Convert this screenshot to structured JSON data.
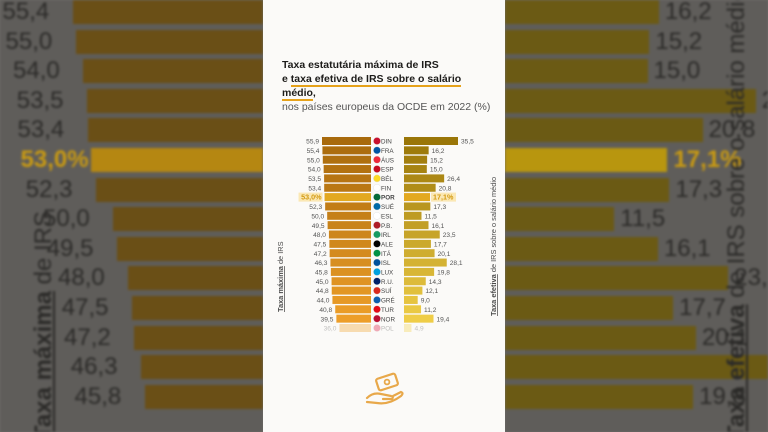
{
  "title": {
    "line1": "Taxa estatutária máxima de IRS",
    "line2_prefix": "e ",
    "line2_emph": "taxa efetiva de IRS sobre o salário médio",
    "line2_suffix": ",",
    "line3": "nos países europeus da OCDE em 2022 (%)"
  },
  "axis": {
    "left_bold": "Taxa máxima",
    "left_rest": " de IRS",
    "right_bold": "Taxa efetiva",
    "right_rest": " de IRS sobre o salário médio"
  },
  "colors": {
    "left_dark": "#a86a0d",
    "left_light": "#f1a12a",
    "right_dark": "#9a7608",
    "right_light": "#f3d24a",
    "highlight": "#e3a920",
    "logo": "#e8a84a"
  },
  "chart_data": {
    "type": "bar",
    "categories": [
      "DIN",
      "FRA",
      "ÁUS",
      "ESP",
      "BÉL",
      "FIN",
      "POR",
      "SUÉ",
      "ESL",
      "P.B.",
      "IRL",
      "ALE",
      "ITÁ",
      "ISL",
      "LUX",
      "R.U.",
      "SUÍ",
      "GRÉ",
      "TUR",
      "NOR",
      "POL"
    ],
    "flags": [
      "dk",
      "fr",
      "at",
      "es",
      "be",
      "fi",
      "pt",
      "se",
      "si",
      "nl",
      "ie",
      "de",
      "it",
      "is",
      "lu",
      "gb",
      "ch",
      "gr",
      "tr",
      "no",
      "pl"
    ],
    "series": [
      {
        "name": "Taxa máxima de IRS",
        "values": [
          55.9,
          55.4,
          55.0,
          54.0,
          53.5,
          53.4,
          53.0,
          52.3,
          50.0,
          49.5,
          48.0,
          47.5,
          47.2,
          46.3,
          45.8,
          45.0,
          44.8,
          44.0,
          40.8,
          39.5,
          36.0
        ]
      },
      {
        "name": "Taxa efetiva de IRS sobre o salário médio",
        "values": [
          35.5,
          16.2,
          15.2,
          15.0,
          26.4,
          20.8,
          17.1,
          17.3,
          11.5,
          16.1,
          23.5,
          17.7,
          20.1,
          28.1,
          19.8,
          14.3,
          12.1,
          9.0,
          11.2,
          19.4,
          4.9
        ]
      }
    ],
    "labels_left": [
      "55,9",
      "55,4",
      "55,0",
      "54,0",
      "53,5",
      "53,4",
      "53,0%",
      "52,3",
      "50,0",
      "49,5",
      "48,0",
      "47,5",
      "47,2",
      "46,3",
      "45,8",
      "45,0",
      "44,8",
      "44,0",
      "40,8",
      "39,5",
      "36,0"
    ],
    "labels_right": [
      "35,5",
      "16,2",
      "15,2",
      "15,0",
      "26,4",
      "20,8",
      "17,1%",
      "17,3",
      "11,5",
      "16,1",
      "23,5",
      "17,7",
      "20,1",
      "28,1",
      "19,8",
      "14,3",
      "12,1",
      "9,0",
      "11,2",
      "19,4",
      "4,9"
    ],
    "highlight_index": 6
  },
  "background": {
    "left_values": [
      "55,4",
      "55,0",
      "54,0",
      "53,5",
      "53,4",
      "53,0%",
      "52,3",
      "50,0",
      "49,5",
      "48,0",
      "47,5",
      "47,2",
      "46,3",
      "45,8"
    ],
    "right_values": [
      "16,2",
      "15,2",
      "15,0",
      "26,4",
      "20,8",
      "17,1%",
      "17,3",
      "11,5",
      "16,1",
      "23,5",
      "17,7",
      "20,1",
      "28,1",
      "19,8"
    ]
  }
}
